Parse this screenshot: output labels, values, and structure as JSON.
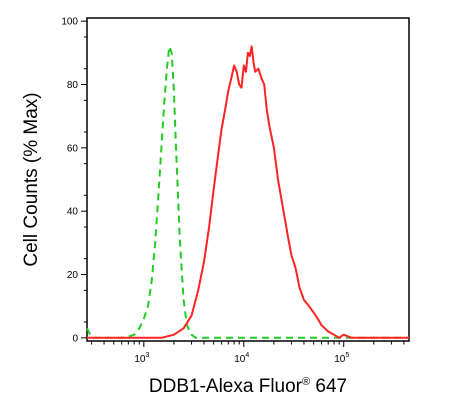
{
  "chart_data": {
    "type": "line",
    "xlabel": "DDB1-Alexa Fluor",
    "xlabel_mark": "®",
    "xlabel_suffix": " 647",
    "ylabel": "Cell Counts (% Max)",
    "x_scale": "log",
    "xlim": [
      270,
      450000
    ],
    "ylim": [
      -1,
      101
    ],
    "y_ticks": [
      0,
      20,
      40,
      60,
      80,
      100
    ],
    "y_tick_labels": [
      "0",
      "20",
      "40",
      "60",
      "80",
      "100"
    ],
    "x_ticks": [
      1000,
      10000,
      100000
    ],
    "x_tick_base": "10",
    "x_tick_exps": [
      "3",
      "4",
      "5"
    ],
    "grid": false,
    "legend": "none",
    "series": [
      {
        "color": "#22cc22",
        "style": "dashed",
        "x": [
          270,
          300,
          650,
          800,
          900,
          1000,
          1100,
          1200,
          1300,
          1400,
          1500,
          1600,
          1700,
          1800,
          1900,
          2000,
          2100,
          2300,
          2500,
          2700,
          3000,
          3300,
          3600,
          4000,
          6000,
          10000,
          30000,
          100000,
          450000
        ],
        "y": [
          3,
          0,
          0,
          1,
          3,
          6,
          10,
          18,
          30,
          45,
          60,
          74,
          85,
          92,
          90,
          78,
          60,
          30,
          12,
          4,
          1,
          0,
          0,
          0,
          0,
          0,
          0,
          0,
          0
        ]
      },
      {
        "color": "#ff2222",
        "style": "solid",
        "x": [
          270,
          1500,
          2000,
          2500,
          3000,
          3500,
          4000,
          4500,
          5000,
          5500,
          6000,
          6500,
          7000,
          7500,
          8000,
          8500,
          9000,
          9500,
          10000,
          10500,
          11000,
          11500,
          12000,
          12500,
          13000,
          14000,
          15000,
          16000,
          17000,
          18000,
          20000,
          22000,
          25000,
          28000,
          30000,
          33000,
          36000,
          40000,
          45000,
          50000,
          55000,
          60000,
          70000,
          80000,
          90000,
          100000,
          120000,
          200000,
          450000
        ],
        "y": [
          0,
          0,
          1,
          3,
          7,
          15,
          24,
          35,
          47,
          57,
          66,
          72,
          78,
          82,
          86,
          84,
          80,
          79,
          86,
          84,
          90,
          89,
          92,
          87,
          84,
          85,
          82,
          80,
          72,
          67,
          60,
          50,
          40,
          31,
          26,
          22,
          16,
          12,
          10,
          8,
          6,
          4,
          2,
          1,
          0,
          1,
          0,
          0,
          0
        ]
      }
    ]
  }
}
